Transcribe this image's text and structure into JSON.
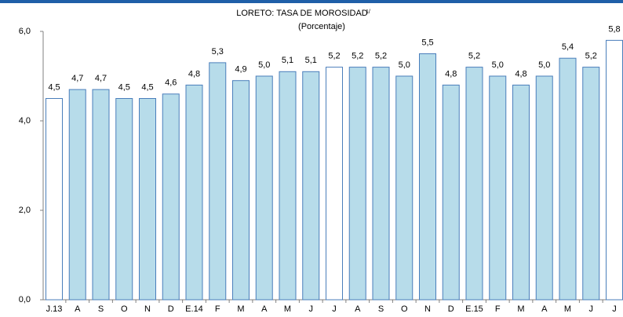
{
  "chart_data": {
    "type": "bar",
    "title": "LORETO: TASA DE MOROSIDAD",
    "title_note": "1/",
    "subtitle": "(Porcentaje)",
    "categories": [
      "J.13",
      "A",
      "S",
      "O",
      "N",
      "D",
      "E.14",
      "F",
      "M",
      "A",
      "M",
      "J",
      "J",
      "A",
      "S",
      "O",
      "N",
      "D",
      "E.15",
      "F",
      "M",
      "A",
      "M",
      "J",
      "J"
    ],
    "values": [
      4.5,
      4.7,
      4.7,
      4.5,
      4.5,
      4.6,
      4.8,
      5.3,
      4.9,
      5.0,
      5.1,
      5.1,
      5.2,
      5.2,
      5.2,
      5.0,
      5.5,
      4.8,
      5.2,
      5.0,
      4.8,
      5.0,
      5.4,
      5.2,
      5.8
    ],
    "value_labels": [
      "4,5",
      "4,7",
      "4,7",
      "4,5",
      "4,5",
      "4,6",
      "4,8",
      "5,3",
      "4,9",
      "5,0",
      "5,1",
      "5,1",
      "5,2",
      "5,2",
      "5,2",
      "5,0",
      "5,5",
      "4,8",
      "5,2",
      "5,0",
      "4,8",
      "5,0",
      "5,4",
      "5,2",
      "5,8"
    ],
    "colors": [
      "#ffffff",
      "#b7dcea",
      "#b7dcea",
      "#b7dcea",
      "#b7dcea",
      "#b7dcea",
      "#b7dcea",
      "#b7dcea",
      "#b7dcea",
      "#b7dcea",
      "#b7dcea",
      "#b7dcea",
      "#ffffff",
      "#b7dcea",
      "#b7dcea",
      "#b7dcea",
      "#b7dcea",
      "#b7dcea",
      "#b7dcea",
      "#b7dcea",
      "#b7dcea",
      "#b7dcea",
      "#b7dcea",
      "#b7dcea",
      "#ffffff"
    ],
    "edge_color": "#4a7ebb",
    "ylim": [
      0,
      6
    ],
    "yticks": [
      {
        "value": 0,
        "label": "0,0"
      },
      {
        "value": 2,
        "label": "2,0"
      },
      {
        "value": 4,
        "label": "4,0"
      },
      {
        "value": 6,
        "label": "6,0"
      }
    ],
    "grid": false
  }
}
